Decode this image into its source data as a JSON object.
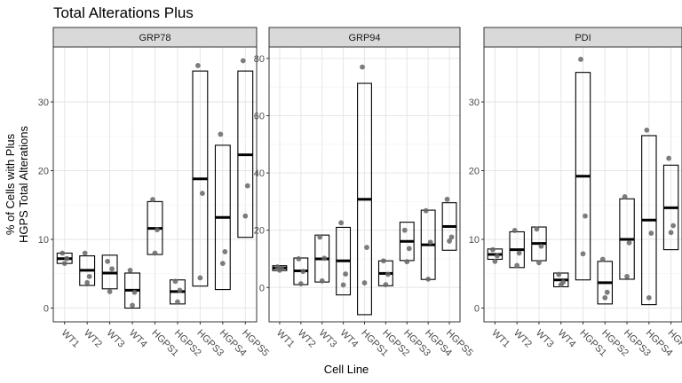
{
  "chart_data": {
    "type": "box",
    "title": "Total Alterations Plus",
    "xlabel": "Cell Line",
    "ylabel_lines": [
      "% of Cells with Plus",
      "HGPS Total Alterations"
    ],
    "categories": [
      "WT1",
      "WT2",
      "WT3",
      "WT4",
      "HGPS1",
      "HGPS2",
      "HGPS3",
      "HGPS4",
      "HGPS5"
    ],
    "grid": true,
    "facets": [
      {
        "name": "GRP78",
        "ylim": [
          -2,
          38
        ],
        "yticks": [
          0,
          10,
          20,
          30
        ],
        "boxes": [
          {
            "category": "WT1",
            "low": 6.5,
            "mid": 7.2,
            "high": 8.0,
            "points": [
              8.0,
              7.2,
              6.5
            ]
          },
          {
            "category": "WT2",
            "low": 3.3,
            "mid": 5.5,
            "high": 7.6,
            "points": [
              8.0,
              4.6,
              3.7
            ]
          },
          {
            "category": "WT3",
            "low": 2.8,
            "mid": 5.1,
            "high": 7.7,
            "points": [
              6.8,
              5.7,
              2.4
            ]
          },
          {
            "category": "WT4",
            "low": 0.0,
            "mid": 2.6,
            "high": 5.1,
            "points": [
              5.5,
              2.3,
              0.4
            ]
          },
          {
            "category": "HGPS1",
            "low": 7.8,
            "mid": 11.6,
            "high": 15.5,
            "points": [
              15.8,
              11.4,
              8.0
            ]
          },
          {
            "category": "HGPS2",
            "low": 0.6,
            "mid": 2.4,
            "high": 4.1,
            "points": [
              3.9,
              2.6,
              0.9
            ]
          },
          {
            "category": "HGPS3",
            "low": 3.2,
            "mid": 18.8,
            "high": 34.5,
            "points": [
              35.3,
              16.7,
              4.4
            ]
          },
          {
            "category": "HGPS4",
            "low": 2.7,
            "mid": 13.2,
            "high": 23.7,
            "points": [
              25.3,
              8.2,
              6.5
            ]
          },
          {
            "category": "HGPS5",
            "low": 10.3,
            "mid": 22.3,
            "high": 34.5,
            "points": [
              36.0,
              17.8,
              13.4
            ]
          }
        ]
      },
      {
        "name": "GRP94",
        "ylim": [
          -12,
          84
        ],
        "yticks": [
          0,
          20,
          40,
          60,
          80
        ],
        "boxes": [
          {
            "category": "WT1",
            "low": 5.9,
            "mid": 6.8,
            "high": 7.6,
            "points": [
              7.2,
              6.6,
              6.0
            ]
          },
          {
            "category": "WT2",
            "low": 1.0,
            "mid": 5.8,
            "high": 10.3,
            "points": [
              10.0,
              5.6,
              1.3
            ]
          },
          {
            "category": "WT3",
            "low": 1.9,
            "mid": 10.0,
            "high": 18.3,
            "points": [
              17.6,
              10.2,
              2.3
            ]
          },
          {
            "category": "WT4",
            "low": -2.6,
            "mid": 9.3,
            "high": 21.0,
            "points": [
              22.6,
              4.7,
              0.9
            ]
          },
          {
            "category": "HGPS1",
            "low": -9.5,
            "mid": 30.8,
            "high": 71.3,
            "points": [
              77.0,
              14.0,
              1.6
            ]
          },
          {
            "category": "HGPS2",
            "low": 0.6,
            "mid": 4.9,
            "high": 9.3,
            "points": [
              9.3,
              4.6,
              1.0
            ]
          },
          {
            "category": "HGPS3",
            "low": 9.4,
            "mid": 16.1,
            "high": 22.8,
            "points": [
              20.0,
              13.6,
              9.0
            ]
          },
          {
            "category": "HGPS4",
            "low": 2.8,
            "mid": 14.9,
            "high": 27.0,
            "points": [
              26.8,
              15.8,
              2.9
            ]
          },
          {
            "category": "HGPS5",
            "low": 13.0,
            "mid": 21.3,
            "high": 29.6,
            "points": [
              30.8,
              17.6,
              16.2
            ]
          }
        ]
      },
      {
        "name": "PDI",
        "ylim": [
          -2,
          38
        ],
        "yticks": [
          0,
          10,
          20,
          30
        ],
        "boxes": [
          {
            "category": "WT1",
            "low": 7.1,
            "mid": 7.8,
            "high": 8.6,
            "points": [
              8.5,
              7.6,
              6.8
            ]
          },
          {
            "category": "WT2",
            "low": 5.9,
            "mid": 8.5,
            "high": 11.1,
            "points": [
              11.3,
              8.0,
              6.2
            ]
          },
          {
            "category": "WT3",
            "low": 6.9,
            "mid": 9.4,
            "high": 11.8,
            "points": [
              11.5,
              9.0,
              6.6
            ]
          },
          {
            "category": "WT4",
            "low": 3.1,
            "mid": 4.1,
            "high": 5.1,
            "points": [
              4.9,
              3.8,
              3.4
            ]
          },
          {
            "category": "HGPS1",
            "low": 4.1,
            "mid": 19.2,
            "high": 34.3,
            "points": [
              36.2,
              13.4,
              7.9
            ]
          },
          {
            "category": "HGPS2",
            "low": 0.6,
            "mid": 3.7,
            "high": 6.8,
            "points": [
              7.1,
              2.3,
              1.5
            ]
          },
          {
            "category": "HGPS3",
            "low": 4.2,
            "mid": 10.0,
            "high": 15.9,
            "points": [
              16.2,
              9.5,
              4.6
            ]
          },
          {
            "category": "HGPS4",
            "low": 0.5,
            "mid": 12.8,
            "high": 25.1,
            "points": [
              25.9,
              10.9,
              1.5
            ]
          },
          {
            "category": "HGPS5",
            "low": 8.5,
            "mid": 14.6,
            "high": 20.8,
            "points": [
              21.8,
              12.0,
              11.0
            ]
          }
        ]
      }
    ]
  }
}
